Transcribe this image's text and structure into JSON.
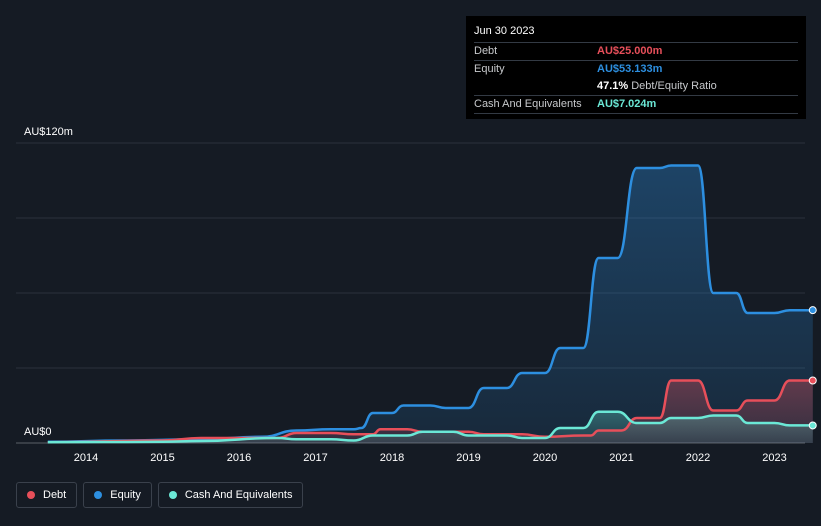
{
  "chart_data": {
    "type": "area",
    "title": "",
    "y_axis": {
      "top_label": "AU$120m",
      "bottom_label": "AU$0",
      "ylim": [
        0,
        120
      ]
    },
    "x_ticks": [
      "2014",
      "2015",
      "2016",
      "2017",
      "2018",
      "2019",
      "2020",
      "2021",
      "2022",
      "2023"
    ],
    "x_range": [
      2013.5,
      2023.5
    ],
    "series": [
      {
        "name": "Equity",
        "color": "#2d8fe0",
        "points": [
          [
            2013.5,
            0.5
          ],
          [
            2014.5,
            1
          ],
          [
            2015.5,
            1.5
          ],
          [
            2016.3,
            2.5
          ],
          [
            2016.75,
            5
          ],
          [
            2017.2,
            5.5
          ],
          [
            2017.5,
            5.5
          ],
          [
            2017.6,
            6
          ],
          [
            2017.75,
            12
          ],
          [
            2018.0,
            12
          ],
          [
            2018.15,
            15
          ],
          [
            2018.5,
            15
          ],
          [
            2018.7,
            14
          ],
          [
            2019.0,
            14
          ],
          [
            2019.2,
            22
          ],
          [
            2019.5,
            22
          ],
          [
            2019.7,
            28
          ],
          [
            2020.0,
            28
          ],
          [
            2020.2,
            38
          ],
          [
            2020.5,
            38
          ],
          [
            2020.7,
            74
          ],
          [
            2020.95,
            74
          ],
          [
            2021.2,
            110
          ],
          [
            2021.5,
            110
          ],
          [
            2021.65,
            111
          ],
          [
            2021.75,
            111
          ],
          [
            2022.0,
            111
          ],
          [
            2022.2,
            60
          ],
          [
            2022.5,
            60
          ],
          [
            2022.65,
            52
          ],
          [
            2023.0,
            52
          ],
          [
            2023.2,
            53.133
          ],
          [
            2023.5,
            53.133
          ]
        ]
      },
      {
        "name": "Debt",
        "color": "#e74f5a",
        "points": [
          [
            2013.5,
            0.3
          ],
          [
            2015.0,
            1
          ],
          [
            2015.5,
            2
          ],
          [
            2016.5,
            2
          ],
          [
            2016.75,
            4
          ],
          [
            2017.2,
            4
          ],
          [
            2017.5,
            3.5
          ],
          [
            2017.75,
            3.5
          ],
          [
            2017.85,
            5.5
          ],
          [
            2018.2,
            5.5
          ],
          [
            2018.4,
            4.5
          ],
          [
            2019.0,
            4.5
          ],
          [
            2019.2,
            3.5
          ],
          [
            2019.7,
            3.5
          ],
          [
            2020.0,
            2.5
          ],
          [
            2020.5,
            3
          ],
          [
            2020.6,
            3
          ],
          [
            2020.7,
            5
          ],
          [
            2021.0,
            5
          ],
          [
            2021.2,
            10
          ],
          [
            2021.5,
            10
          ],
          [
            2021.65,
            25
          ],
          [
            2022.0,
            25
          ],
          [
            2022.2,
            13
          ],
          [
            2022.5,
            13
          ],
          [
            2022.65,
            17
          ],
          [
            2023.0,
            17
          ],
          [
            2023.2,
            25
          ],
          [
            2023.5,
            25
          ]
        ]
      },
      {
        "name": "Cash And Equivalents",
        "color": "#6be8d6",
        "points": [
          [
            2013.5,
            0.3
          ],
          [
            2015.0,
            0.5
          ],
          [
            2015.5,
            0.8
          ],
          [
            2016.5,
            2
          ],
          [
            2016.75,
            1.5
          ],
          [
            2017.2,
            1.5
          ],
          [
            2017.5,
            1
          ],
          [
            2017.75,
            3
          ],
          [
            2018.2,
            3
          ],
          [
            2018.4,
            4.5
          ],
          [
            2018.8,
            4.5
          ],
          [
            2019.0,
            3
          ],
          [
            2019.5,
            3
          ],
          [
            2019.7,
            2
          ],
          [
            2020.0,
            2
          ],
          [
            2020.2,
            6
          ],
          [
            2020.5,
            6
          ],
          [
            2020.7,
            12.5
          ],
          [
            2020.95,
            12.5
          ],
          [
            2021.2,
            8
          ],
          [
            2021.5,
            8
          ],
          [
            2021.65,
            10
          ],
          [
            2022.0,
            10
          ],
          [
            2022.2,
            11
          ],
          [
            2022.5,
            11
          ],
          [
            2022.65,
            8
          ],
          [
            2023.0,
            8
          ],
          [
            2023.2,
            7.024
          ],
          [
            2023.5,
            7.024
          ]
        ]
      }
    ]
  },
  "tooltip": {
    "date": "Jun 30 2023",
    "debt_label": "Debt",
    "debt_value": "AU$25.000m",
    "equity_label": "Equity",
    "equity_value": "AU$53.133m",
    "ratio_value": "47.1%",
    "ratio_label": "Debt/Equity Ratio",
    "cash_label": "Cash And Equivalents",
    "cash_value": "AU$7.024m"
  },
  "legend": {
    "debt": "Debt",
    "equity": "Equity",
    "cash": "Cash And Equivalents"
  },
  "colors": {
    "debt": "#e74f5a",
    "equity": "#2d8fe0",
    "cash": "#6be8d6"
  }
}
